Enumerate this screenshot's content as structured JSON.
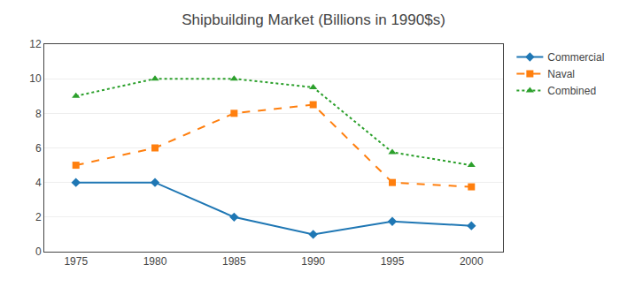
{
  "chart_data": {
    "type": "line",
    "title": "Shipbuilding Market (Billions in 1990$s)",
    "x": [
      1975,
      1980,
      1985,
      1990,
      1995,
      2000
    ],
    "series": [
      {
        "name": "Commercial",
        "values": [
          4,
          4,
          2,
          1,
          1.75,
          1.5
        ],
        "marker": "diamond",
        "line_style": "solid"
      },
      {
        "name": "Naval",
        "values": [
          5,
          6,
          8,
          8.5,
          4,
          3.75
        ],
        "marker": "square",
        "line_style": "dash"
      },
      {
        "name": "Combined",
        "values": [
          9,
          10,
          10,
          9.5,
          5.75,
          5
        ],
        "marker": "triangle-up",
        "line_style": "dot"
      }
    ],
    "xlim": [
      1973,
      2002
    ],
    "xticks": [
      1975,
      1980,
      1985,
      1990,
      1995,
      2000
    ],
    "ylim": [
      0,
      12
    ],
    "yticks": [
      0,
      2,
      4,
      6,
      8,
      10,
      12
    ],
    "grid": true,
    "legend": "right"
  }
}
